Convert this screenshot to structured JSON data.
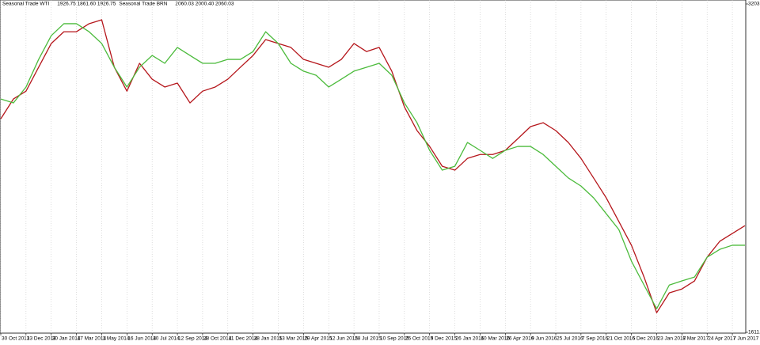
{
  "chart_data": {
    "type": "line",
    "categories": [
      "30 Oct 2013",
      null,
      "13 Dec 2013",
      null,
      "30 Jan 2014",
      null,
      "17 Mar 2014",
      null,
      "1 May 2014",
      null,
      "16 Jun 2014",
      null,
      "30 Jul 2014",
      null,
      "12 Sep 2014",
      null,
      "28 Oct 2014",
      null,
      "11 Dec 2014",
      null,
      "28 Jan 2015",
      null,
      "13 Mar 2015",
      null,
      "29 Apr 2015",
      null,
      "12 Jun 2015",
      null,
      "28 Jul 2015",
      null,
      "10 Sep 2015",
      null,
      "26 Oct 2015",
      null,
      "9 Dec 2015",
      null,
      "26 Jan 2016",
      null,
      "10 Mar 2016",
      null,
      "26 Apr 2016",
      null,
      "9 Jun 2016",
      null,
      "25 Jul 2016",
      null,
      "7 Sep 2016",
      null,
      "21 Oct 2016",
      null,
      "6 Dec 2016",
      null,
      "23 Jan 2017",
      null,
      "8 Mar 2017",
      null,
      "24 Apr 2017",
      null,
      "7 Jun 2017",
      null
    ],
    "series": [
      {
        "name": "Seasonal Trade WTI",
        "quote": "1926.75 1861.60 1926.75",
        "color": "#b5161b",
        "values": [
          2647,
          2743,
          2781,
          2897,
          3012,
          3069,
          3069,
          3108,
          3127,
          2897,
          2781,
          2916,
          2839,
          2801,
          2820,
          2724,
          2781,
          2801,
          2839,
          2897,
          2954,
          3031,
          3012,
          2993,
          2935,
          2916,
          2897,
          2935,
          3012,
          2973,
          2993,
          2878,
          2705,
          2590,
          2513,
          2417,
          2398,
          2455,
          2474,
          2474,
          2494,
          2551,
          2609,
          2628,
          2590,
          2532,
          2455,
          2360,
          2264,
          2149,
          2034,
          1880,
          1707,
          1803,
          1822,
          1861,
          1976,
          2053,
          2091,
          2129
        ]
      },
      {
        "name": "Seasonal Trade BRN",
        "quote": "2060.03 2000.40 2060.03",
        "color": "#4cbb3c",
        "values": [
          2743,
          2724,
          2801,
          2935,
          3050,
          3108,
          3108,
          3069,
          3012,
          2897,
          2801,
          2897,
          2954,
          2916,
          2993,
          2954,
          2916,
          2916,
          2935,
          2935,
          2973,
          3069,
          3012,
          2916,
          2878,
          2858,
          2801,
          2839,
          2878,
          2897,
          2916,
          2858,
          2724,
          2628,
          2494,
          2398,
          2417,
          2532,
          2494,
          2455,
          2494,
          2513,
          2513,
          2474,
          2417,
          2360,
          2321,
          2264,
          2187,
          2110,
          1957,
          1841,
          1726,
          1841,
          1861,
          1880,
          1976,
          2014,
          2034,
          2034
        ]
      }
    ],
    "ylim": [
      1611.81,
      3203.69
    ],
    "yticks": [
      1611.81,
      3203.69
    ],
    "grid": true
  }
}
